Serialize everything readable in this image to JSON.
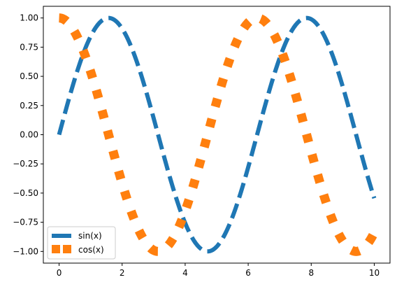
{
  "chart_data": {
    "type": "line",
    "title": "",
    "xlabel": "",
    "ylabel": "",
    "xlim": [
      -0.5,
      10.5
    ],
    "ylim": [
      -1.1,
      1.1
    ],
    "grid": false,
    "legend_position": "lower-left",
    "x_ticks": [
      0,
      2,
      4,
      6,
      8,
      10
    ],
    "x_tick_labels": [
      "0",
      "2",
      "4",
      "6",
      "8",
      "10"
    ],
    "y_ticks": [
      1.0,
      0.75,
      0.5,
      0.25,
      0.0,
      -0.25,
      -0.5,
      -0.75,
      -1.0
    ],
    "y_tick_labels": [
      "1.00",
      "0.75",
      "0.50",
      "0.25",
      "0.00",
      "−0.25",
      "−0.50",
      "−0.75",
      "−1.00"
    ],
    "series": [
      {
        "name": "sin(x)",
        "function": "sin",
        "color": "#1f77b4",
        "style": "dashed",
        "x": [
          0,
          0.5,
          1,
          1.5,
          2,
          2.5,
          3,
          3.5,
          4,
          4.5,
          5,
          5.5,
          6,
          6.5,
          7,
          7.5,
          8,
          8.5,
          9,
          9.5,
          10
        ],
        "values": [
          0.0,
          0.48,
          0.84,
          1.0,
          0.91,
          0.6,
          0.14,
          -0.35,
          -0.76,
          -0.98,
          -0.96,
          -0.71,
          -0.28,
          0.22,
          0.66,
          0.94,
          0.99,
          0.8,
          0.41,
          -0.08,
          -0.54
        ]
      },
      {
        "name": "cos(x)",
        "function": "cos",
        "color": "#ff7f0e",
        "style": "dotted",
        "x": [
          0,
          0.5,
          1,
          1.5,
          2,
          2.5,
          3,
          3.5,
          4,
          4.5,
          5,
          5.5,
          6,
          6.5,
          7,
          7.5,
          8,
          8.5,
          9,
          9.5,
          10
        ],
        "values": [
          1.0,
          0.88,
          0.54,
          0.07,
          -0.42,
          -0.8,
          -0.99,
          -0.94,
          -0.65,
          -0.21,
          0.28,
          0.71,
          0.96,
          0.98,
          0.75,
          0.35,
          -0.15,
          -0.6,
          -0.91,
          -1.0,
          -0.84
        ]
      }
    ]
  }
}
